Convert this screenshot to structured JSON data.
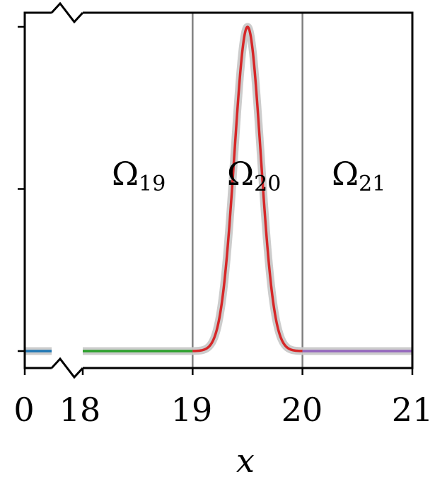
{
  "chart_data": {
    "type": "line",
    "title": "",
    "xlabel": "x",
    "ylabel": "",
    "xlim": [
      0,
      21
    ],
    "x_axis_break": [
      0.3,
      18
    ],
    "ylim": [
      -0.05,
      1.05
    ],
    "x_ticks": [
      "0",
      "18",
      "19",
      "20",
      "21"
    ],
    "y_ticks_labeled": false,
    "y_tick_positions": [
      0,
      0.5,
      1.0
    ],
    "grid": false,
    "legend": "none",
    "region_boundaries": [
      19,
      20
    ],
    "regions": [
      {
        "symbol": "Ω",
        "sub": "19",
        "center_x": 18.5
      },
      {
        "symbol": "Ω",
        "sub": "20",
        "center_x": 19.5
      },
      {
        "symbol": "Ω",
        "sub": "21",
        "center_x": 20.5
      }
    ],
    "reference_curve": {
      "color": "#cccccc",
      "shape": "gaussian",
      "center": 19.5,
      "sigma": 0.12,
      "amplitude": 1.0
    },
    "series": [
      {
        "x_range": [
          0,
          0.3
        ],
        "values_constant": 0.0,
        "color": "#1f77b4"
      },
      {
        "x_range": [
          18,
          19
        ],
        "values_constant": 0.0,
        "color": "#2ca02c"
      },
      {
        "x_range": [
          19,
          20
        ],
        "shape": "gaussian",
        "center": 19.5,
        "sigma": 0.12,
        "amplitude": 1.0,
        "color": "#d62728"
      },
      {
        "x_range": [
          20,
          21
        ],
        "values_constant": 0.0,
        "color": "#9467bd"
      }
    ],
    "region_line_color": "#808080"
  }
}
